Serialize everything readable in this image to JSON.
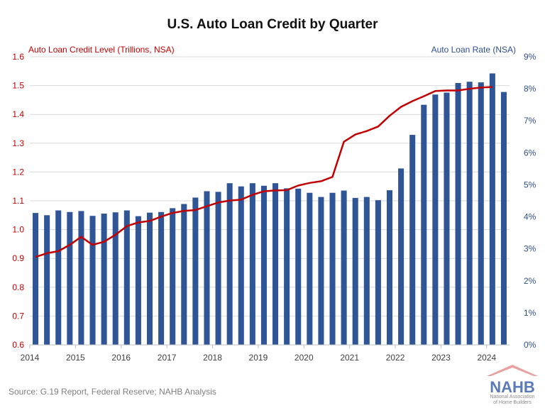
{
  "chart_data": {
    "type": "bar+line",
    "title": "U.S. Auto Loan Credit by Quarter",
    "left_axis_label": "Auto Loan Credit Level (Trillions, NSA)",
    "right_axis_label": "Auto Loan Rate (NSA)",
    "x_tick_labels": [
      "2014",
      "2015",
      "2016",
      "2017",
      "2018",
      "2019",
      "2020",
      "2021",
      "2022",
      "2023",
      "2024"
    ],
    "left_ylim": [
      0.6,
      1.6
    ],
    "left_ticks": [
      "0.6",
      "0.7",
      "0.8",
      "0.9",
      "1.0",
      "1.1",
      "1.2",
      "1.3",
      "1.4",
      "1.5",
      "1.6"
    ],
    "right_ylim": [
      0,
      9
    ],
    "right_ticks": [
      "0%",
      "1%",
      "2%",
      "3%",
      "4%",
      "5%",
      "6%",
      "7%",
      "8%",
      "9%"
    ],
    "grid": true,
    "series": [
      {
        "name": "Auto Loan Rate (NSA)",
        "type": "bar",
        "axis": "right",
        "color": "#2f5597",
        "values": [
          4.12,
          4.05,
          4.2,
          4.15,
          4.18,
          4.03,
          4.1,
          4.14,
          4.2,
          4.02,
          4.13,
          4.15,
          4.27,
          4.4,
          4.6,
          4.8,
          4.78,
          5.05,
          4.95,
          5.05,
          4.97,
          5.05,
          4.89,
          4.88,
          4.75,
          4.62,
          4.75,
          4.82,
          4.59,
          4.62,
          4.52,
          4.83,
          5.51,
          6.56,
          7.5,
          7.82,
          7.88,
          8.18,
          8.22,
          8.2,
          8.48,
          7.9
        ]
      },
      {
        "name": "Auto Loan Credit Level (Trillions, NSA)",
        "type": "line",
        "axis": "left",
        "color": "#c00000",
        "values": [
          0.905,
          0.918,
          0.925,
          0.947,
          0.975,
          0.947,
          0.958,
          0.982,
          1.012,
          1.025,
          1.03,
          1.045,
          1.058,
          1.065,
          1.068,
          1.081,
          1.094,
          1.101,
          1.104,
          1.121,
          1.133,
          1.136,
          1.137,
          1.153,
          1.162,
          1.168,
          1.183,
          1.305,
          1.33,
          1.342,
          1.358,
          1.395,
          1.426,
          1.446,
          1.463,
          1.481,
          1.483,
          1.483,
          1.489,
          1.493,
          1.495
        ]
      }
    ]
  },
  "source_text": "Source: G.19 Report, Federal Reserve; NAHB Analysis",
  "logo": {
    "name": "NAHB",
    "tagline_1": "National Association",
    "tagline_2": "of Home Builders",
    "roof_color": "#e8a0a0"
  }
}
